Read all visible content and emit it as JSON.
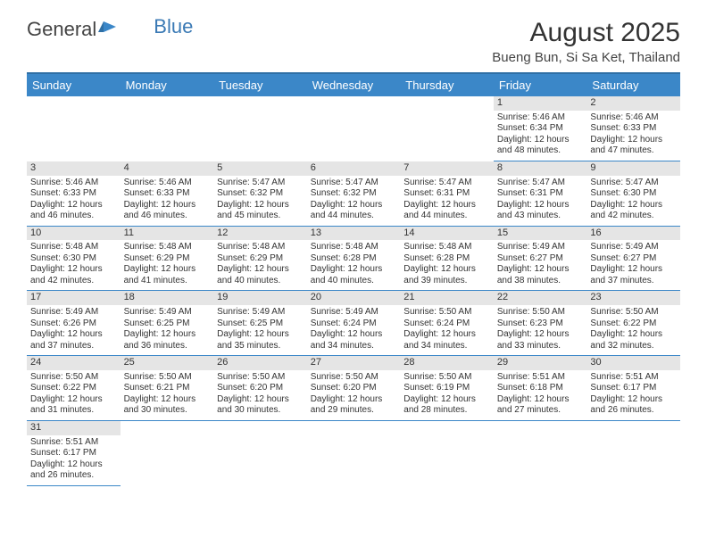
{
  "logo": {
    "part1": "General",
    "part2": "Blue"
  },
  "title": "August 2025",
  "subtitle": "Bueng Bun, Si Sa Ket, Thailand",
  "header_bg": "#3b87c8",
  "daynum_bg": "#e5e5e5",
  "border_color": "#3b87c8",
  "weekdays": [
    "Sunday",
    "Monday",
    "Tuesday",
    "Wednesday",
    "Thursday",
    "Friday",
    "Saturday"
  ],
  "weeks": [
    [
      null,
      null,
      null,
      null,
      null,
      {
        "day": "1",
        "sunrise": "Sunrise: 5:46 AM",
        "sunset": "Sunset: 6:34 PM",
        "daylight1": "Daylight: 12 hours",
        "daylight2": "and 48 minutes."
      },
      {
        "day": "2",
        "sunrise": "Sunrise: 5:46 AM",
        "sunset": "Sunset: 6:33 PM",
        "daylight1": "Daylight: 12 hours",
        "daylight2": "and 47 minutes."
      }
    ],
    [
      {
        "day": "3",
        "sunrise": "Sunrise: 5:46 AM",
        "sunset": "Sunset: 6:33 PM",
        "daylight1": "Daylight: 12 hours",
        "daylight2": "and 46 minutes."
      },
      {
        "day": "4",
        "sunrise": "Sunrise: 5:46 AM",
        "sunset": "Sunset: 6:33 PM",
        "daylight1": "Daylight: 12 hours",
        "daylight2": "and 46 minutes."
      },
      {
        "day": "5",
        "sunrise": "Sunrise: 5:47 AM",
        "sunset": "Sunset: 6:32 PM",
        "daylight1": "Daylight: 12 hours",
        "daylight2": "and 45 minutes."
      },
      {
        "day": "6",
        "sunrise": "Sunrise: 5:47 AM",
        "sunset": "Sunset: 6:32 PM",
        "daylight1": "Daylight: 12 hours",
        "daylight2": "and 44 minutes."
      },
      {
        "day": "7",
        "sunrise": "Sunrise: 5:47 AM",
        "sunset": "Sunset: 6:31 PM",
        "daylight1": "Daylight: 12 hours",
        "daylight2": "and 44 minutes."
      },
      {
        "day": "8",
        "sunrise": "Sunrise: 5:47 AM",
        "sunset": "Sunset: 6:31 PM",
        "daylight1": "Daylight: 12 hours",
        "daylight2": "and 43 minutes."
      },
      {
        "day": "9",
        "sunrise": "Sunrise: 5:47 AM",
        "sunset": "Sunset: 6:30 PM",
        "daylight1": "Daylight: 12 hours",
        "daylight2": "and 42 minutes."
      }
    ],
    [
      {
        "day": "10",
        "sunrise": "Sunrise: 5:48 AM",
        "sunset": "Sunset: 6:30 PM",
        "daylight1": "Daylight: 12 hours",
        "daylight2": "and 42 minutes."
      },
      {
        "day": "11",
        "sunrise": "Sunrise: 5:48 AM",
        "sunset": "Sunset: 6:29 PM",
        "daylight1": "Daylight: 12 hours",
        "daylight2": "and 41 minutes."
      },
      {
        "day": "12",
        "sunrise": "Sunrise: 5:48 AM",
        "sunset": "Sunset: 6:29 PM",
        "daylight1": "Daylight: 12 hours",
        "daylight2": "and 40 minutes."
      },
      {
        "day": "13",
        "sunrise": "Sunrise: 5:48 AM",
        "sunset": "Sunset: 6:28 PM",
        "daylight1": "Daylight: 12 hours",
        "daylight2": "and 40 minutes."
      },
      {
        "day": "14",
        "sunrise": "Sunrise: 5:48 AM",
        "sunset": "Sunset: 6:28 PM",
        "daylight1": "Daylight: 12 hours",
        "daylight2": "and 39 minutes."
      },
      {
        "day": "15",
        "sunrise": "Sunrise: 5:49 AM",
        "sunset": "Sunset: 6:27 PM",
        "daylight1": "Daylight: 12 hours",
        "daylight2": "and 38 minutes."
      },
      {
        "day": "16",
        "sunrise": "Sunrise: 5:49 AM",
        "sunset": "Sunset: 6:27 PM",
        "daylight1": "Daylight: 12 hours",
        "daylight2": "and 37 minutes."
      }
    ],
    [
      {
        "day": "17",
        "sunrise": "Sunrise: 5:49 AM",
        "sunset": "Sunset: 6:26 PM",
        "daylight1": "Daylight: 12 hours",
        "daylight2": "and 37 minutes."
      },
      {
        "day": "18",
        "sunrise": "Sunrise: 5:49 AM",
        "sunset": "Sunset: 6:25 PM",
        "daylight1": "Daylight: 12 hours",
        "daylight2": "and 36 minutes."
      },
      {
        "day": "19",
        "sunrise": "Sunrise: 5:49 AM",
        "sunset": "Sunset: 6:25 PM",
        "daylight1": "Daylight: 12 hours",
        "daylight2": "and 35 minutes."
      },
      {
        "day": "20",
        "sunrise": "Sunrise: 5:49 AM",
        "sunset": "Sunset: 6:24 PM",
        "daylight1": "Daylight: 12 hours",
        "daylight2": "and 34 minutes."
      },
      {
        "day": "21",
        "sunrise": "Sunrise: 5:50 AM",
        "sunset": "Sunset: 6:24 PM",
        "daylight1": "Daylight: 12 hours",
        "daylight2": "and 34 minutes."
      },
      {
        "day": "22",
        "sunrise": "Sunrise: 5:50 AM",
        "sunset": "Sunset: 6:23 PM",
        "daylight1": "Daylight: 12 hours",
        "daylight2": "and 33 minutes."
      },
      {
        "day": "23",
        "sunrise": "Sunrise: 5:50 AM",
        "sunset": "Sunset: 6:22 PM",
        "daylight1": "Daylight: 12 hours",
        "daylight2": "and 32 minutes."
      }
    ],
    [
      {
        "day": "24",
        "sunrise": "Sunrise: 5:50 AM",
        "sunset": "Sunset: 6:22 PM",
        "daylight1": "Daylight: 12 hours",
        "daylight2": "and 31 minutes."
      },
      {
        "day": "25",
        "sunrise": "Sunrise: 5:50 AM",
        "sunset": "Sunset: 6:21 PM",
        "daylight1": "Daylight: 12 hours",
        "daylight2": "and 30 minutes."
      },
      {
        "day": "26",
        "sunrise": "Sunrise: 5:50 AM",
        "sunset": "Sunset: 6:20 PM",
        "daylight1": "Daylight: 12 hours",
        "daylight2": "and 30 minutes."
      },
      {
        "day": "27",
        "sunrise": "Sunrise: 5:50 AM",
        "sunset": "Sunset: 6:20 PM",
        "daylight1": "Daylight: 12 hours",
        "daylight2": "and 29 minutes."
      },
      {
        "day": "28",
        "sunrise": "Sunrise: 5:50 AM",
        "sunset": "Sunset: 6:19 PM",
        "daylight1": "Daylight: 12 hours",
        "daylight2": "and 28 minutes."
      },
      {
        "day": "29",
        "sunrise": "Sunrise: 5:51 AM",
        "sunset": "Sunset: 6:18 PM",
        "daylight1": "Daylight: 12 hours",
        "daylight2": "and 27 minutes."
      },
      {
        "day": "30",
        "sunrise": "Sunrise: 5:51 AM",
        "sunset": "Sunset: 6:17 PM",
        "daylight1": "Daylight: 12 hours",
        "daylight2": "and 26 minutes."
      }
    ],
    [
      {
        "day": "31",
        "sunrise": "Sunrise: 5:51 AM",
        "sunset": "Sunset: 6:17 PM",
        "daylight1": "Daylight: 12 hours",
        "daylight2": "and 26 minutes."
      },
      null,
      null,
      null,
      null,
      null,
      null
    ]
  ]
}
